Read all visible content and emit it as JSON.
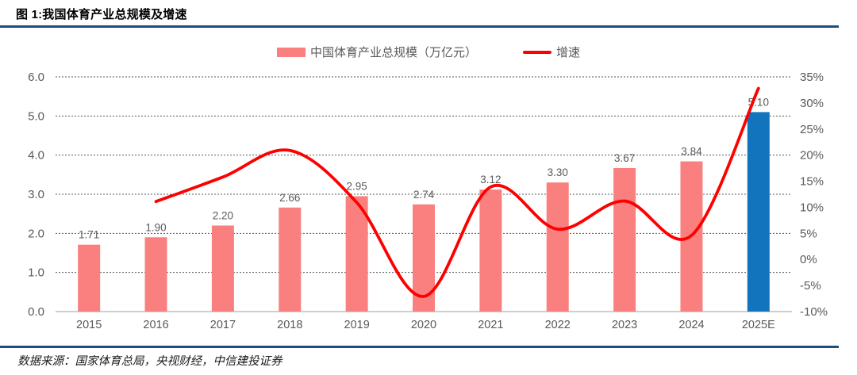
{
  "header": {
    "title": "图 1:我国体育产业总规模及增速"
  },
  "legend": {
    "bar_label": "中国体育产业总规模（万亿元）",
    "line_label": "增速"
  },
  "footer": {
    "source": "数据来源：国家体育总局，央视财经，中信建投证券"
  },
  "colors": {
    "bar": "#FA8080",
    "highlight_bar": "#1274BC",
    "line": "#FF0000",
    "rule": "#1F4E79",
    "grid": "#595959",
    "baseline": "#BFBFBF",
    "axis_text": "#595959",
    "data_label": "#595959"
  },
  "chart_data": {
    "type": "combo-bar-line",
    "categories": [
      "2015",
      "2016",
      "2017",
      "2018",
      "2019",
      "2020",
      "2021",
      "2022",
      "2023",
      "2024",
      "2025E"
    ],
    "series": [
      {
        "name": "中国体育产业总规模（万亿元）",
        "type": "bar",
        "axis": "left",
        "values": [
          1.71,
          1.9,
          2.2,
          2.66,
          2.95,
          2.74,
          3.12,
          3.3,
          3.67,
          3.84,
          5.1
        ],
        "labels": [
          "1.71",
          "1.90",
          "2.20",
          "2.66",
          "2.95",
          "2.74",
          "3.12",
          "3.30",
          "3.67",
          "3.84",
          "5.10"
        ],
        "highlight_index": 10
      },
      {
        "name": "增速",
        "type": "line",
        "axis": "right",
        "values": [
          null,
          11.1,
          15.8,
          20.9,
          10.9,
          -7.1,
          13.9,
          5.8,
          11.2,
          4.6,
          32.8
        ]
      }
    ],
    "left_axis": {
      "min": 0,
      "max": 6,
      "ticks": [
        "0.0",
        "1.0",
        "2.0",
        "3.0",
        "4.0",
        "5.0",
        "6.0"
      ]
    },
    "right_axis": {
      "min": -10,
      "max": 35,
      "ticks": [
        "-10%",
        "-5%",
        "0%",
        "5%",
        "10%",
        "15%",
        "20%",
        "25%",
        "30%",
        "35%"
      ]
    },
    "grid": "horizontal-dashed",
    "legend_position": "top-center"
  }
}
